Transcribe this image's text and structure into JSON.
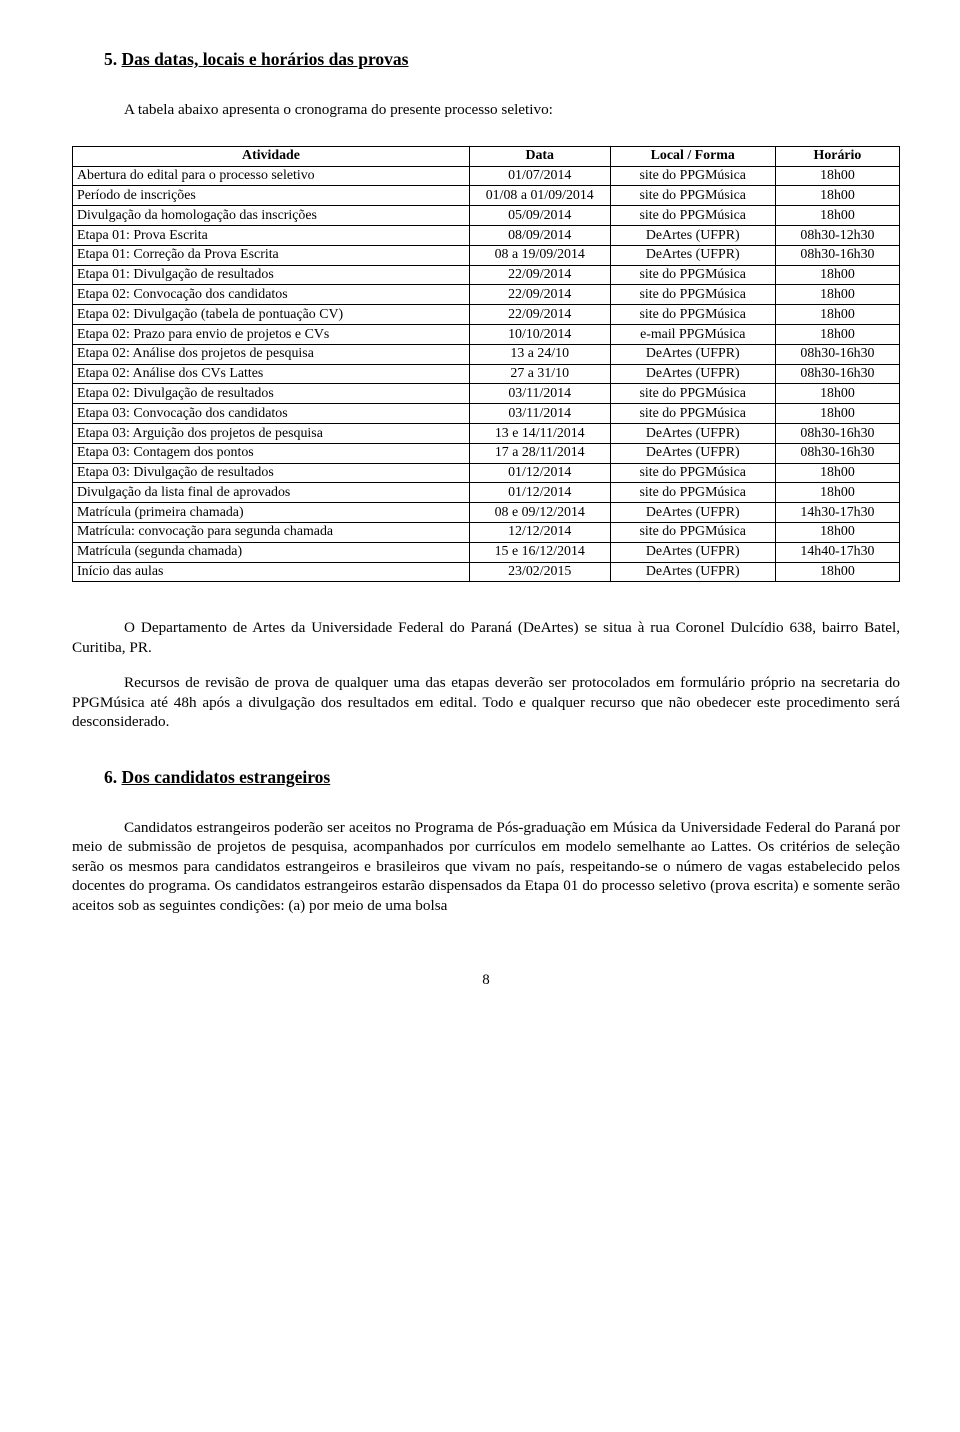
{
  "section5": {
    "number": "5.",
    "title": "Das datas, locais e horários das provas",
    "intro": "A tabela abaixo apresenta o cronograma do presente processo seletivo:"
  },
  "table": {
    "headers": {
      "activity": "Atividade",
      "date": "Data",
      "local": "Local / Forma",
      "time": "Horário"
    },
    "col_widths": [
      "48%",
      "17%",
      "20%",
      "15%"
    ],
    "rows": [
      {
        "activity": "Abertura do edital para o processo seletivo",
        "date": "01/07/2014",
        "local": "site do PPGMúsica",
        "time": "18h00"
      },
      {
        "activity": "Período de inscrições",
        "date": "01/08 a 01/09/2014",
        "local": "site do PPGMúsica",
        "time": "18h00"
      },
      {
        "activity": "Divulgação da homologação das inscrições",
        "date": "05/09/2014",
        "local": "site do PPGMúsica",
        "time": "18h00"
      },
      {
        "activity": "Etapa 01: Prova Escrita",
        "date": "08/09/2014",
        "local": "DeArtes (UFPR)",
        "time": "08h30-12h30"
      },
      {
        "activity": "Etapa 01: Correção da Prova Escrita",
        "date": "08 a 19/09/2014",
        "local": "DeArtes (UFPR)",
        "time": "08h30-16h30"
      },
      {
        "activity": "Etapa 01: Divulgação de resultados",
        "date": "22/09/2014",
        "local": "site do PPGMúsica",
        "time": "18h00"
      },
      {
        "activity": "Etapa 02: Convocação dos candidatos",
        "date": "22/09/2014",
        "local": "site do PPGMúsica",
        "time": "18h00"
      },
      {
        "activity": "Etapa 02: Divulgação (tabela de pontuação CV)",
        "date": "22/09/2014",
        "local": "site do PPGMúsica",
        "time": "18h00"
      },
      {
        "activity": "Etapa 02: Prazo para envio de projetos e CVs",
        "date": "10/10/2014",
        "local": "e-mail PPGMúsica",
        "time": "18h00"
      },
      {
        "activity": "Etapa 02: Análise dos projetos de pesquisa",
        "date": "13 a 24/10",
        "local": "DeArtes (UFPR)",
        "time": "08h30-16h30"
      },
      {
        "activity": "Etapa 02: Análise dos CVs Lattes",
        "date": "27 a 31/10",
        "local": "DeArtes (UFPR)",
        "time": "08h30-16h30"
      },
      {
        "activity": "Etapa 02: Divulgação de resultados",
        "date": "03/11/2014",
        "local": "site do PPGMúsica",
        "time": "18h00"
      },
      {
        "activity": "Etapa 03: Convocação dos candidatos",
        "date": "03/11/2014",
        "local": "site do PPGMúsica",
        "time": "18h00"
      },
      {
        "activity": "Etapa 03: Arguição dos projetos de pesquisa",
        "date": "13 e 14/11/2014",
        "local": "DeArtes (UFPR)",
        "time": "08h30-16h30"
      },
      {
        "activity": "Etapa 03: Contagem dos pontos",
        "date": "17 a 28/11/2014",
        "local": "DeArtes (UFPR)",
        "time": "08h30-16h30"
      },
      {
        "activity": "Etapa 03: Divulgação de resultados",
        "date": "01/12/2014",
        "local": "site do PPGMúsica",
        "time": "18h00"
      },
      {
        "activity": "Divulgação da lista final de aprovados",
        "date": "01/12/2014",
        "local": "site do PPGMúsica",
        "time": "18h00"
      },
      {
        "activity": "Matrícula (primeira chamada)",
        "date": "08 e 09/12/2014",
        "local": "DeArtes (UFPR)",
        "time": "14h30-17h30"
      },
      {
        "activity": "Matrícula: convocação para segunda chamada",
        "date": "12/12/2014",
        "local": "site do PPGMúsica",
        "time": "18h00"
      },
      {
        "activity": "Matrícula (segunda chamada)",
        "date": "15 e 16/12/2014",
        "local": "DeArtes (UFPR)",
        "time": "14h40-17h30"
      },
      {
        "activity": "Início das aulas",
        "date": "23/02/2015",
        "local": "DeArtes (UFPR)",
        "time": "18h00"
      }
    ]
  },
  "para1": "O Departamento de Artes da Universidade Federal do Paraná (DeArtes) se situa à rua Coronel Dulcídio 638, bairro Batel, Curitiba, PR.",
  "para2": "Recursos de revisão de prova de qualquer uma das etapas deverão ser protocolados em formulário próprio na secretaria do PPGMúsica até 48h após a divulgação dos resultados em edital. Todo e qualquer recurso que não obedecer este procedimento será desconsiderado.",
  "section6": {
    "number": "6.",
    "title": "Dos candidatos estrangeiros",
    "body": "Candidatos estrangeiros poderão ser aceitos no Programa de Pós-graduação em Música da Universidade Federal do Paraná por meio de submissão de projetos de pesquisa, acompanhados por currículos em modelo semelhante ao Lattes. Os critérios de seleção serão os mesmos para candidatos estrangeiros e brasileiros que vivam no país, respeitando-se o número de vagas estabelecido pelos docentes do programa. Os candidatos estrangeiros estarão dispensados da Etapa 01 do processo seletivo (prova escrita) e somente serão aceitos sob as seguintes condições: (a) por meio de uma bolsa"
  },
  "page_number": "8"
}
